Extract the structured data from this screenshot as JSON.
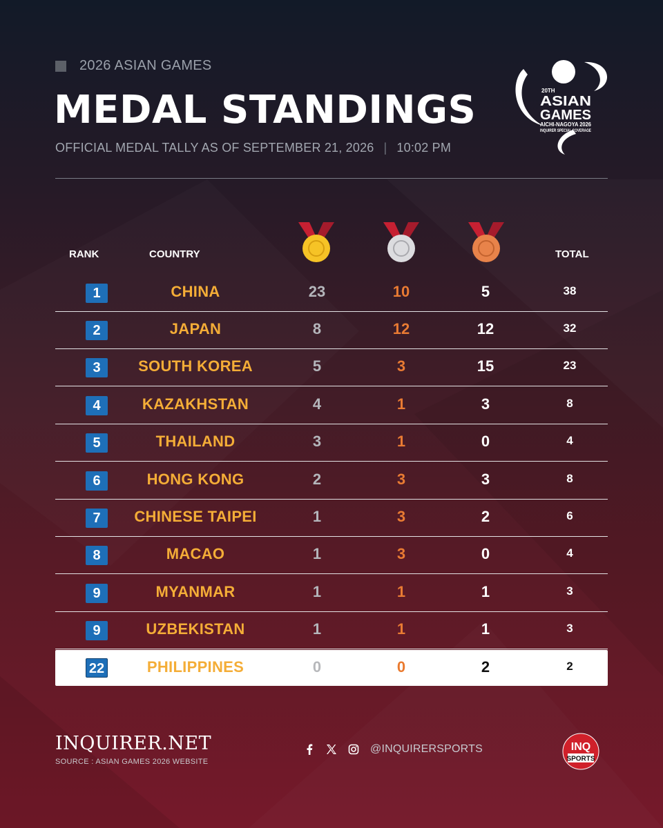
{
  "header": {
    "kicker": "2026 ASIAN GAMES",
    "title": "MEDAL STANDINGS",
    "subtitle": "OFFICIAL MEDAL TALLY AS OF SEPTEMBER 21, 2026",
    "separator": "|",
    "time": "10:02 PM"
  },
  "logo": {
    "edition": "20TH",
    "line1": "ASIAN",
    "line2": "GAMES",
    "line3": "AICHI-NAGOYA 2026",
    "line4": "INQUIRER SPECIAL COVERAGE"
  },
  "table": {
    "headers": {
      "rank": "RANK",
      "country": "COUNTRY",
      "total": "TOTAL"
    },
    "medal_icons": [
      "gold-medal-icon",
      "silver-medal-icon",
      "bronze-medal-icon"
    ],
    "rows": [
      {
        "rank": "1",
        "country": "CHINA",
        "gold": "23",
        "silver": "10",
        "bronze": "5",
        "total": "38"
      },
      {
        "rank": "2",
        "country": "JAPAN",
        "gold": "8",
        "silver": "12",
        "bronze": "12",
        "total": "32"
      },
      {
        "rank": "3",
        "country": "SOUTH KOREA",
        "gold": "5",
        "silver": "3",
        "bronze": "15",
        "total": "23"
      },
      {
        "rank": "4",
        "country": "KAZAKHSTAN",
        "gold": "4",
        "silver": "1",
        "bronze": "3",
        "total": "8"
      },
      {
        "rank": "5",
        "country": "THAILAND",
        "gold": "3",
        "silver": "1",
        "bronze": "0",
        "total": "4"
      },
      {
        "rank": "6",
        "country": "HONG KONG",
        "gold": "2",
        "silver": "3",
        "bronze": "3",
        "total": "8"
      },
      {
        "rank": "7",
        "country": "CHINESE TAIPEI",
        "gold": "1",
        "silver": "3",
        "bronze": "2",
        "total": "6"
      },
      {
        "rank": "8",
        "country": "MACAO",
        "gold": "1",
        "silver": "3",
        "bronze": "0",
        "total": "4"
      },
      {
        "rank": "9",
        "country": "MYANMAR",
        "gold": "1",
        "silver": "1",
        "bronze": "1",
        "total": "3"
      },
      {
        "rank": "9",
        "country": "UZBEKISTAN",
        "gold": "1",
        "silver": "1",
        "bronze": "1",
        "total": "3"
      }
    ],
    "highlight_row": {
      "rank": "22",
      "country": "PHILIPPINES",
      "gold": "0",
      "silver": "0",
      "bronze": "2",
      "total": "2"
    }
  },
  "footer": {
    "brand": "INQUIRER.NET",
    "source": "SOURCE : ASIAN GAMES 2026 WEBSITE",
    "social_icons": [
      "facebook-icon",
      "x-icon",
      "instagram-icon"
    ],
    "handle": "@INQUIRERSPORTS",
    "badge_top": "INQ",
    "badge_bottom": "SPORTS"
  },
  "colors": {
    "accent_gold": "#f4ad37",
    "rank_blue": "#1e6fb8",
    "silver_text": "#e97b33",
    "brand_red": "#d0202a"
  }
}
